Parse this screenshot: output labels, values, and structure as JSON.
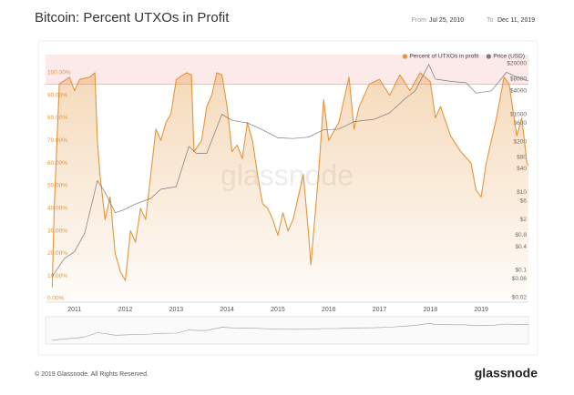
{
  "chart_data": {
    "type": "line",
    "title": "Bitcoin: Percent UTXOs in Profit",
    "from_label": "From",
    "from_date": "Jul 25, 2010",
    "to_label": "To",
    "to_date": "Dec 11, 2019",
    "watermark": "glassnode",
    "copyright": "© 2019 Glassnode. All Rights Reserved.",
    "logo": "glassnode",
    "legend_position": "top-right",
    "highlight_above": 95,
    "xlim": [
      2010.43,
      2019.93
    ],
    "xticks": [
      2011,
      2012,
      2013,
      2014,
      2015,
      2016,
      2017,
      2018,
      2019
    ],
    "ylim": [
      -0.8,
      108
    ],
    "yticks": [
      {
        "value": 0,
        "label": "0.00%"
      },
      {
        "value": 10,
        "label": "10.00%"
      },
      {
        "value": 20,
        "label": "20.00%"
      },
      {
        "value": 30,
        "label": "30.00%"
      },
      {
        "value": 40,
        "label": "40.00%"
      },
      {
        "value": 50,
        "label": "50.00%"
      },
      {
        "value": 60,
        "label": "60.00%"
      },
      {
        "value": 70,
        "label": "70.00%"
      },
      {
        "value": 80,
        "label": "80.00%"
      },
      {
        "value": 90,
        "label": "90.00%"
      },
      {
        "value": 100,
        "label": "100.00%"
      }
    ],
    "y2_log": true,
    "y2lim": [
      0.017,
      34000
    ],
    "y2ticks": [
      {
        "value": 0.02,
        "label": "$0.02"
      },
      {
        "value": 0.06,
        "label": "$0.06"
      },
      {
        "value": 0.1,
        "label": "$0.1"
      },
      {
        "value": 0.4,
        "label": "$0.4"
      },
      {
        "value": 0.8,
        "label": "$0.8"
      },
      {
        "value": 2,
        "label": "$2"
      },
      {
        "value": 6,
        "label": "$6"
      },
      {
        "value": 10,
        "label": "$10"
      },
      {
        "value": 40,
        "label": "$40"
      },
      {
        "value": 80,
        "label": "$80"
      },
      {
        "value": 200,
        "label": "$200"
      },
      {
        "value": 600,
        "label": "$600"
      },
      {
        "value": 1000,
        "label": "$1000"
      },
      {
        "value": 4000,
        "label": "$4000"
      },
      {
        "value": 8000,
        "label": "$8000"
      },
      {
        "value": 20000,
        "label": "$20000"
      }
    ],
    "series": [
      {
        "name": "Percent of UTXOs in profit",
        "color": "#e4953c",
        "axis": "y",
        "area": true,
        "x": [
          2010.56,
          2010.6,
          2010.7,
          2010.9,
          2011.0,
          2011.1,
          2011.3,
          2011.4,
          2011.45,
          2011.5,
          2011.6,
          2011.7,
          2011.8,
          2011.9,
          2012.0,
          2012.1,
          2012.2,
          2012.3,
          2012.4,
          2012.5,
          2012.6,
          2012.7,
          2012.8,
          2012.9,
          2013.0,
          2013.2,
          2013.3,
          2013.35,
          2013.5,
          2013.6,
          2013.7,
          2013.8,
          2013.9,
          2014.0,
          2014.1,
          2014.2,
          2014.3,
          2014.4,
          2014.5,
          2014.6,
          2014.7,
          2014.8,
          2014.9,
          2015.0,
          2015.1,
          2015.2,
          2015.3,
          2015.5,
          2015.6,
          2015.65,
          2015.8,
          2015.9,
          2016.0,
          2016.2,
          2016.4,
          2016.5,
          2016.6,
          2016.8,
          2017.0,
          2017.2,
          2017.4,
          2017.6,
          2017.8,
          2018.0,
          2018.1,
          2018.2,
          2018.4,
          2018.6,
          2018.8,
          2018.9,
          2019.0,
          2019.1,
          2019.3,
          2019.45,
          2019.55,
          2019.7,
          2019.8,
          2019.9,
          2019.93
        ],
        "values": [
          5,
          40,
          95,
          98,
          92,
          97,
          98,
          100,
          70,
          55,
          35,
          45,
          20,
          12,
          8,
          30,
          25,
          40,
          35,
          55,
          75,
          70,
          78,
          82,
          97,
          100,
          99,
          65,
          70,
          85,
          90,
          100,
          99,
          85,
          65,
          68,
          62,
          78,
          70,
          55,
          42,
          40,
          35,
          28,
          38,
          30,
          35,
          55,
          30,
          15,
          55,
          88,
          70,
          78,
          98,
          75,
          85,
          95,
          97,
          90,
          99,
          92,
          100,
          96,
          80,
          85,
          72,
          65,
          60,
          48,
          45,
          60,
          80,
          98,
          95,
          72,
          80,
          60,
          59
        ]
      },
      {
        "name": "Price (USD)",
        "color": "#7a7a7a",
        "axis": "y2",
        "x": [
          2010.56,
          2010.8,
          2011.0,
          2011.2,
          2011.45,
          2011.6,
          2011.8,
          2011.95,
          2012.2,
          2012.5,
          2012.7,
          2013.0,
          2013.25,
          2013.4,
          2013.6,
          2013.9,
          2014.1,
          2014.4,
          2014.7,
          2015.0,
          2015.3,
          2015.6,
          2015.9,
          2016.2,
          2016.5,
          2016.9,
          2017.2,
          2017.5,
          2017.7,
          2017.97,
          2018.1,
          2018.4,
          2018.7,
          2018.9,
          2019.2,
          2019.5,
          2019.7,
          2019.93
        ],
        "values": [
          0.07,
          0.2,
          0.3,
          0.9,
          20,
          10,
          3,
          3.5,
          5,
          7,
          12,
          14,
          150,
          100,
          100,
          1000,
          700,
          600,
          400,
          250,
          240,
          260,
          400,
          420,
          650,
          750,
          1100,
          2500,
          4000,
          19000,
          8000,
          7000,
          6500,
          3500,
          4000,
          12000,
          9000,
          7200
        ]
      }
    ]
  }
}
